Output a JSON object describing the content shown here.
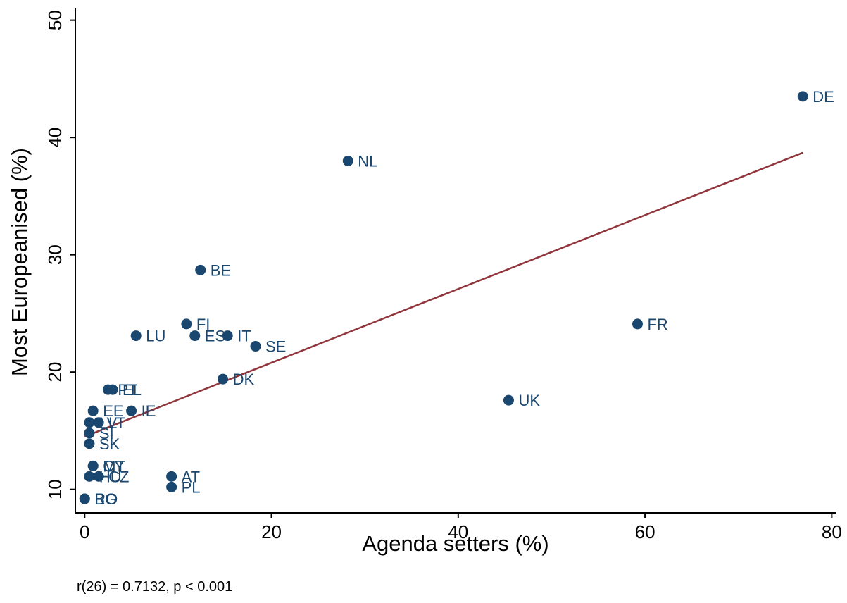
{
  "chart_data": {
    "type": "scatter",
    "xlabel": "Agenda setters (%)",
    "ylabel": "Most Europeanised (%)",
    "xlim": [
      -1,
      80.5
    ],
    "ylim": [
      8,
      51
    ],
    "xticks": [
      0,
      20,
      40,
      60,
      80
    ],
    "yticks": [
      10,
      20,
      30,
      40,
      50
    ],
    "grid": false,
    "points": [
      {
        "label": "DE",
        "x": 76.9,
        "y": 43.5
      },
      {
        "label": "NL",
        "x": 28.2,
        "y": 38.0
      },
      {
        "label": "BE",
        "x": 12.4,
        "y": 28.7
      },
      {
        "label": "FI",
        "x": 10.9,
        "y": 24.1
      },
      {
        "label": "LU",
        "x": 5.5,
        "y": 23.1
      },
      {
        "label": "ES",
        "x": 11.8,
        "y": 23.1
      },
      {
        "label": "IT",
        "x": 15.3,
        "y": 23.1
      },
      {
        "label": "SE",
        "x": 18.3,
        "y": 22.2
      },
      {
        "label": "FR",
        "x": 59.2,
        "y": 24.1
      },
      {
        "label": "DK",
        "x": 14.8,
        "y": 19.4
      },
      {
        "label": "UK",
        "x": 45.4,
        "y": 17.6
      },
      {
        "label": "PT",
        "x": 2.5,
        "y": 18.5
      },
      {
        "label": "EL",
        "x": 3.0,
        "y": 18.5
      },
      {
        "label": "EE",
        "x": 0.9,
        "y": 16.7
      },
      {
        "label": "IE",
        "x": 5.0,
        "y": 16.7
      },
      {
        "label": "LV",
        "x": 0.5,
        "y": 15.7
      },
      {
        "label": "LT",
        "x": 1.5,
        "y": 15.7
      },
      {
        "label": "SI",
        "x": 0.5,
        "y": 14.8
      },
      {
        "label": "SK",
        "x": 0.5,
        "y": 13.9
      },
      {
        "label": "MT",
        "x": 0.9,
        "y": 12.0
      },
      {
        "label": "CY",
        "x": 0.9,
        "y": 12.0
      },
      {
        "label": "HU",
        "x": 0.5,
        "y": 11.1
      },
      {
        "label": "CZ",
        "x": 1.5,
        "y": 11.1
      },
      {
        "label": "AT",
        "x": 9.3,
        "y": 11.1
      },
      {
        "label": "PL",
        "x": 9.3,
        "y": 10.2
      },
      {
        "label": "BG",
        "x": 0.0,
        "y": 9.2
      },
      {
        "label": "RO",
        "x": 0.0,
        "y": 9.2
      }
    ],
    "fit_line": {
      "x": [
        0,
        76.9
      ],
      "y": [
        14.5,
        38.7
      ]
    },
    "note": "r(26) = 0.7132, p < 0.001",
    "colors": {
      "marker": "#1a476f",
      "fit": "#90353b",
      "axis": "#000000"
    }
  }
}
